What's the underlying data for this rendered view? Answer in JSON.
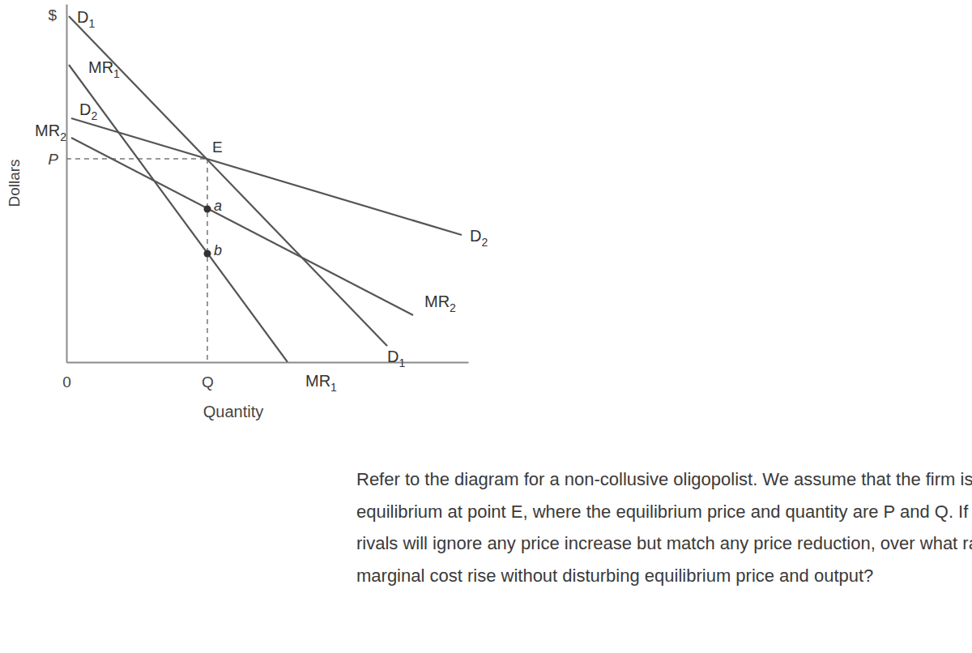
{
  "chart_data": {
    "type": "line",
    "x_label": "Quantity",
    "y_label": "Dollars",
    "annotations": [
      "$"
    ],
    "caption": [
      "Refer to the diagram for a non-collusive oligopolist. We assume that the firm is initially in",
      "equilibrium at point E, where the equilibrium price and quantity are P and Q. If the firm's",
      "rivals will ignore any price increase but match any price reduction, over what range might",
      "marginal cost rise without disturbing equilibrium price and output?"
    ],
    "xlim": [
      0,
      496
    ],
    "ylim": [
      0,
      442
    ],
    "xticks": [
      {
        "value": 0,
        "label": "0"
      },
      {
        "value": 174,
        "label": "Q"
      }
    ],
    "yticks": [
      {
        "value": 251,
        "label": "P"
      }
    ],
    "color": "#555555",
    "series": [
      {
        "name": "D1",
        "x": [
          3,
          396
        ],
        "values": [
          427,
          20
        ]
      },
      {
        "name": "MR1",
        "x": [
          3,
          273
        ],
        "values": [
          367,
          0
        ]
      },
      {
        "name": "D2",
        "x": [
          6,
          488
        ],
        "values": [
          301,
          157
        ]
      },
      {
        "name": "MR2",
        "x": [
          6,
          428
        ],
        "values": [
          277,
          58
        ]
      }
    ],
    "points": [
      {
        "label": "E",
        "x": 174,
        "y": 251,
        "marker": "none"
      },
      {
        "label": "a",
        "x": 174,
        "y": 189,
        "marker": "circle"
      },
      {
        "label": "b",
        "x": 174,
        "y": 134,
        "marker": "circle"
      }
    ]
  }
}
